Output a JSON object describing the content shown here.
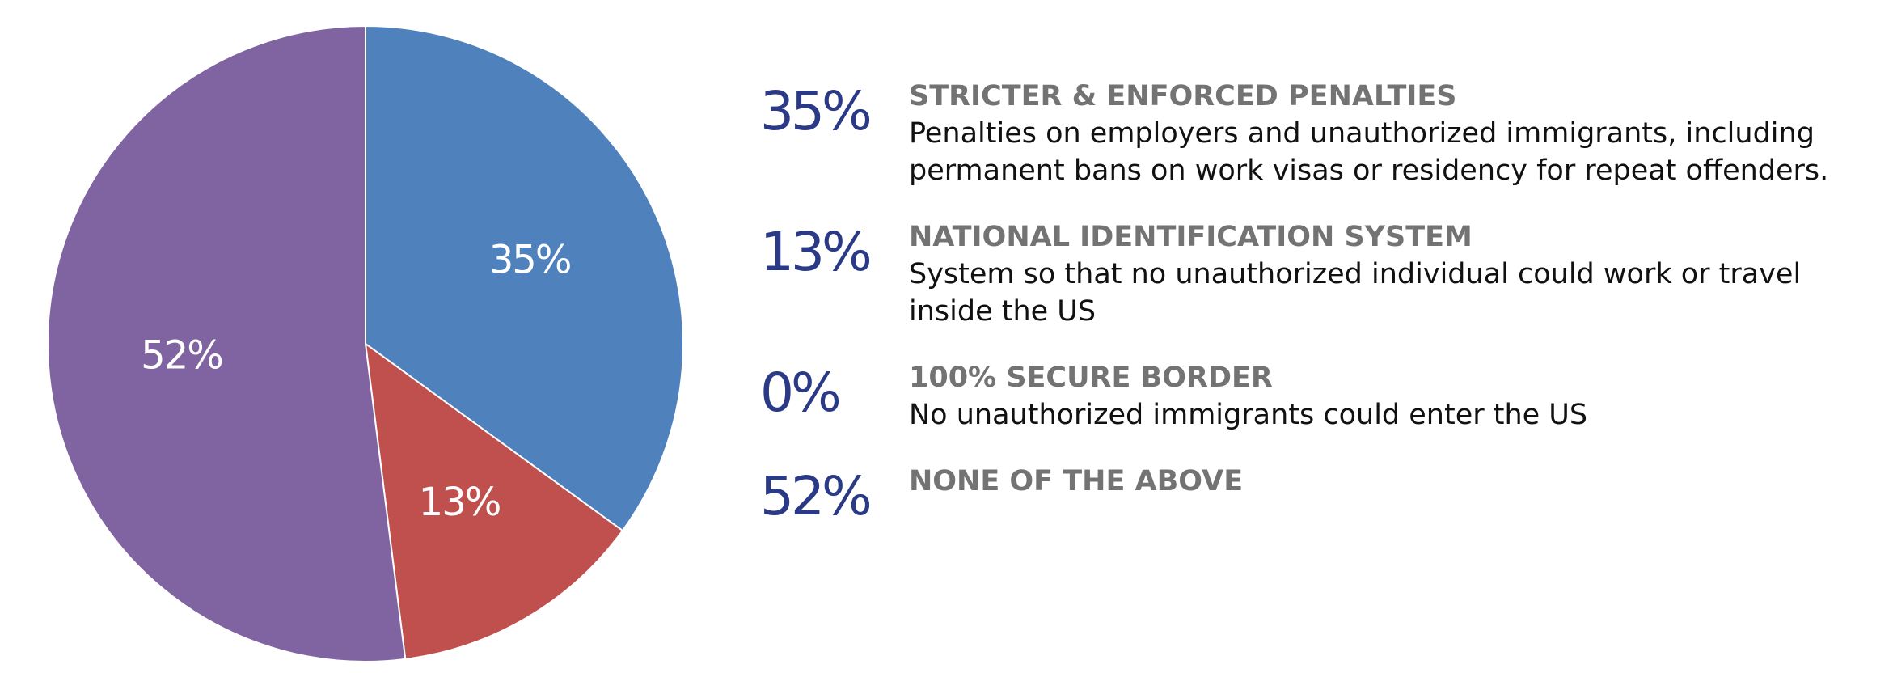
{
  "chart_data": {
    "type": "pie",
    "slices": [
      {
        "label": "STRICTER & ENFORCED PENALTIES",
        "description": "Penalties on employers and unauthorized immigrants, including permanent bans on work visas or residency for repeat offenders.",
        "value": 35,
        "display": "35%",
        "color": "#4f81bd"
      },
      {
        "label": "NATIONAL IDENTIFICATION SYSTEM",
        "description": "System so that no unauthorized individual could work or travel inside the US",
        "value": 13,
        "display": "13%",
        "color": "#c0504d"
      },
      {
        "label": "100% SECURE BORDER",
        "description": "No unauthorized immigrants could enter the US",
        "value": 0,
        "display": "0%",
        "color": "#9bbb59"
      },
      {
        "label": "NONE OF THE ABOVE",
        "description": "",
        "value": 52,
        "display": "52%",
        "color": "#8064a2"
      }
    ],
    "legend": "right",
    "slice_label_color": "#ffffff",
    "percent_color": "#2b3a86",
    "title_color": "#737373"
  }
}
